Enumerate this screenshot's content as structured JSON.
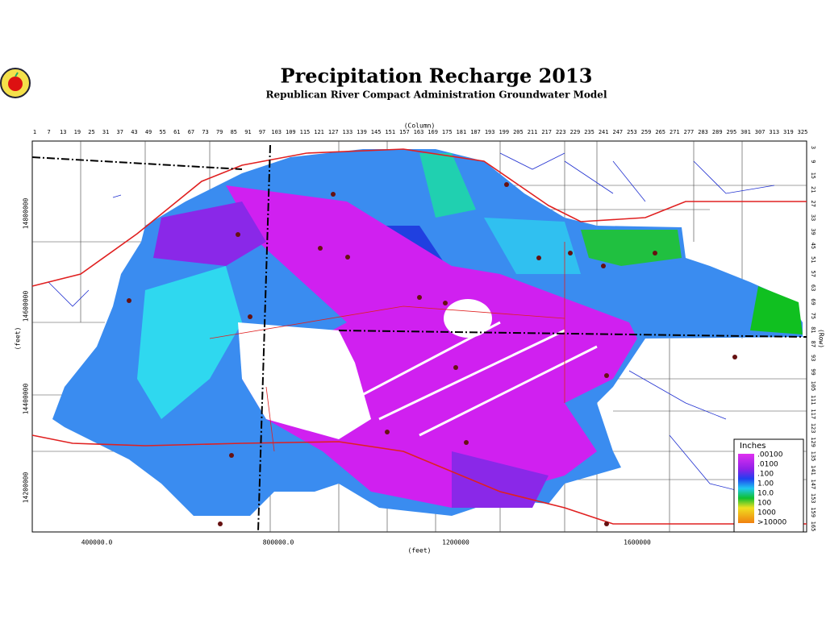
{
  "header": {
    "title": "Precipitation Recharge 2013",
    "subtitle": "Republican River Compact Administration Groundwater Model"
  },
  "axes": {
    "column_title": "(Column)",
    "columns": [
      1,
      7,
      13,
      19,
      25,
      31,
      37,
      43,
      49,
      55,
      61,
      67,
      73,
      79,
      85,
      91,
      97,
      103,
      109,
      115,
      121,
      127,
      133,
      139,
      145,
      151,
      157,
      163,
      169,
      175,
      181,
      187,
      193,
      199,
      205,
      211,
      217,
      223,
      229,
      235,
      241,
      247,
      253,
      259,
      265,
      271,
      277,
      283,
      289,
      295,
      301,
      307,
      313,
      319,
      325
    ],
    "row_title": "(Row)",
    "rows": [
      3,
      9,
      15,
      21,
      27,
      33,
      39,
      45,
      51,
      57,
      63,
      69,
      75,
      81,
      87,
      93,
      99,
      105,
      111,
      117,
      123,
      129,
      135,
      141,
      147,
      153,
      159,
      165
    ],
    "y_title": "(feet)",
    "y_labels": [
      14800000,
      14600000,
      14400000,
      14200000
    ],
    "x_title": "(feet)",
    "x_labels": [
      "400000.0",
      "800000.0",
      "1200000",
      "1600000"
    ]
  },
  "legend": {
    "title": "Inches",
    "labels": [
      ".00100",
      ".0100",
      ".100",
      "1.00",
      "10.0",
      "100",
      "1000",
      ">10000"
    ]
  }
}
